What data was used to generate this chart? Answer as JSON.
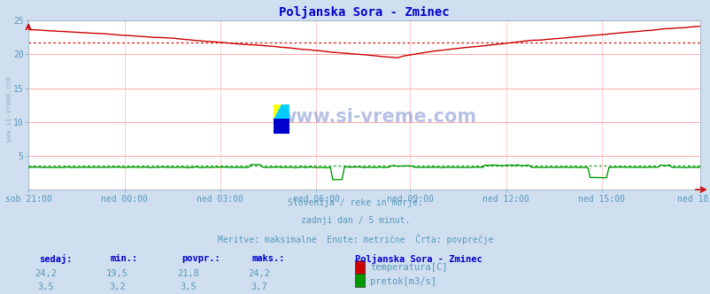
{
  "title": "Poljanska Sora - Zminec",
  "title_color": "#0000cc",
  "bg_color": "#d0dff0",
  "plot_bg_color": "#ffffff",
  "grid_h_color": "#ffaaaa",
  "grid_v_color": "#ffcccc",
  "text_color": "#5599bb",
  "watermark": "www.si-vreme.com",
  "watermark_color": "#1133aa",
  "subtitle_lines": [
    "Slovenija / reke in morje.",
    "zadnji dan / 5 minut.",
    "Meritve: maksimalne  Enote: metrične  Črta: povprečje"
  ],
  "x_labels": [
    "sob 21:00",
    "ned 00:00",
    "ned 03:00",
    "ned 06:00",
    "ned 09:00",
    "ned 12:00",
    "ned 15:00",
    "ned 18:00"
  ],
  "x_ticks_norm": [
    0.0,
    0.143,
    0.286,
    0.429,
    0.571,
    0.714,
    0.857,
    1.0
  ],
  "n_points": 288,
  "temp_avg": 21.8,
  "temp_min": 19.5,
  "temp_max": 24.2,
  "flow_avg": 3.5,
  "flow_min": 3.2,
  "flow_max": 3.7,
  "temp_color": "#cc0000",
  "flow_color": "#009900",
  "ylim": [
    0,
    25
  ],
  "yticks": [
    5,
    10,
    15,
    20,
    25
  ],
  "legend_title": "Poljanska Sora - Zminec",
  "legend_items": [
    {
      "label": "temperatura[C]",
      "color": "#cc0000"
    },
    {
      "label": "pretok[m3/s]",
      "color": "#009900"
    }
  ],
  "table_headers": [
    "sedaj:",
    "min.:",
    "povpr.:",
    "maks.:"
  ],
  "table_row1": [
    "24,2",
    "19,5",
    "21,8",
    "24,2"
  ],
  "table_row2": [
    "3,5",
    "3,2",
    "3,5",
    "3,7"
  ],
  "sidebar_text": "www.si-vreme.com",
  "spine_color": "#aabbcc",
  "arrow_color": "#cc0000"
}
